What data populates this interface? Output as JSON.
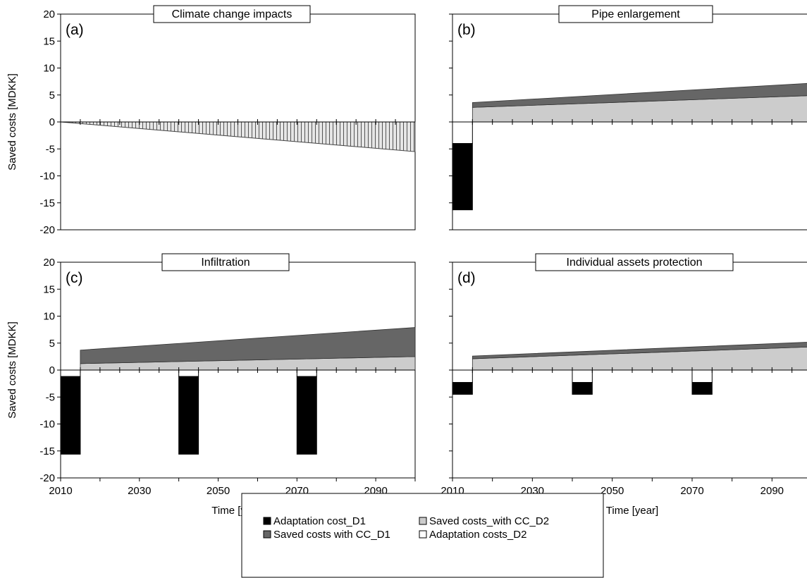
{
  "legend": {
    "entries": [
      {
        "label": "Adaptation cost_D1",
        "color": "#000000"
      },
      {
        "label": "Saved costs with CC_D1",
        "color": "#666666"
      },
      {
        "label": "Saved costs_with CC_D2",
        "color": "#cccccc"
      },
      {
        "label": "Adaptation costs_D2",
        "color": "#ffffff"
      }
    ]
  },
  "chart_data": [
    {
      "type": "bar",
      "title": "Climate change impacts",
      "panel_label": "(a)",
      "ylabel": "Saved costs [MDKK]",
      "xlabel": "",
      "ylim": [
        -20,
        20
      ],
      "yticks": [
        20,
        15,
        10,
        5,
        0,
        -5,
        -10,
        -15,
        -20
      ],
      "xlim": [
        2010,
        2100
      ],
      "xticks": [],
      "hatch": "vertical",
      "series": [
        {
          "name": "Climate change impacts",
          "x": [
            2010,
            2100
          ],
          "y": [
            0,
            -5.5
          ]
        }
      ]
    },
    {
      "type": "area",
      "title": "Pipe enlargement",
      "panel_label": "(b)",
      "ylabel": "",
      "xlabel": "",
      "ylim": [
        -20,
        20
      ],
      "yticks": [],
      "xlim": [
        2010,
        2100
      ],
      "xticks": [],
      "areas": [
        {
          "name": "Saved costs_with CC_D2",
          "color": "#cccccc",
          "x": [
            2015,
            2100
          ],
          "bottom": [
            0,
            0
          ],
          "top": [
            2.7,
            4.9
          ]
        },
        {
          "name": "Saved costs with CC_D1",
          "color": "#666666",
          "x": [
            2015,
            2100
          ],
          "bottom": [
            2.7,
            4.9
          ],
          "top": [
            3.6,
            7.2
          ]
        }
      ],
      "bars": [
        {
          "name": "Adaptation costs_D2",
          "color": "#ffffff",
          "x0": 2010,
          "x1": 2015,
          "bottom": -4,
          "top": 0
        },
        {
          "name": "Adaptation cost_D1",
          "color": "#000000",
          "x0": 2010,
          "x1": 2015,
          "bottom": -16.3,
          "top": -4
        }
      ]
    },
    {
      "type": "area",
      "title": "Infiltration",
      "panel_label": "(c)",
      "ylabel": "Saved costs [MDKK]",
      "xlabel": "Time [year]",
      "ylim": [
        -20,
        20
      ],
      "yticks": [
        20,
        15,
        10,
        5,
        0,
        -5,
        -10,
        -15,
        -20
      ],
      "xlim": [
        2010,
        2100
      ],
      "xticks": [
        2010,
        2030,
        2050,
        2070,
        2090
      ],
      "areas": [
        {
          "name": "Saved costs_with CC_D2",
          "color": "#cccccc",
          "x": [
            2015,
            2100
          ],
          "bottom": [
            0,
            0
          ],
          "top": [
            1.2,
            2.5
          ]
        },
        {
          "name": "Saved costs with CC_D1",
          "color": "#666666",
          "x": [
            2015,
            2100
          ],
          "bottom": [
            1.2,
            2.5
          ],
          "top": [
            3.7,
            7.9
          ]
        }
      ],
      "bars": [
        {
          "name": "Adaptation costs_D2",
          "color": "#ffffff",
          "x0": 2010,
          "x1": 2015,
          "bottom": -1.2,
          "top": 0
        },
        {
          "name": "Adaptation cost_D1",
          "color": "#000000",
          "x0": 2010,
          "x1": 2015,
          "bottom": -15.6,
          "top": -1.2
        },
        {
          "name": "Adaptation costs_D2",
          "color": "#ffffff",
          "x0": 2040,
          "x1": 2045,
          "bottom": -1.2,
          "top": 0
        },
        {
          "name": "Adaptation cost_D1",
          "color": "#000000",
          "x0": 2040,
          "x1": 2045,
          "bottom": -15.6,
          "top": -1.2
        },
        {
          "name": "Adaptation costs_D2",
          "color": "#ffffff",
          "x0": 2070,
          "x1": 2075,
          "bottom": -1.2,
          "top": 0
        },
        {
          "name": "Adaptation cost_D1",
          "color": "#000000",
          "x0": 2070,
          "x1": 2075,
          "bottom": -15.6,
          "top": -1.2
        }
      ]
    },
    {
      "type": "area",
      "title": "Individual assets protection",
      "panel_label": "(d)",
      "ylabel": "",
      "xlabel": "Time [year]",
      "ylim": [
        -20,
        20
      ],
      "yticks": [],
      "xlim": [
        2010,
        2100
      ],
      "xticks": [
        2010,
        2030,
        2050,
        2070,
        2090
      ],
      "areas": [
        {
          "name": "Saved costs_with CC_D2",
          "color": "#cccccc",
          "x": [
            2015,
            2100
          ],
          "bottom": [
            0,
            0
          ],
          "top": [
            2.1,
            4.3
          ]
        },
        {
          "name": "Saved costs with CC_D1",
          "color": "#666666",
          "x": [
            2015,
            2100
          ],
          "bottom": [
            2.1,
            4.3
          ],
          "top": [
            2.6,
            5.2
          ]
        }
      ],
      "bars": [
        {
          "name": "Adaptation costs_D2",
          "color": "#ffffff",
          "x0": 2010,
          "x1": 2015,
          "bottom": -2.3,
          "top": 0
        },
        {
          "name": "Adaptation cost_D1",
          "color": "#000000",
          "x0": 2010,
          "x1": 2015,
          "bottom": -4.5,
          "top": -2.3
        },
        {
          "name": "Adaptation costs_D2",
          "color": "#ffffff",
          "x0": 2040,
          "x1": 2045,
          "bottom": -2.3,
          "top": 0
        },
        {
          "name": "Adaptation cost_D1",
          "color": "#000000",
          "x0": 2040,
          "x1": 2045,
          "bottom": -4.5,
          "top": -2.3
        },
        {
          "name": "Adaptation costs_D2",
          "color": "#ffffff",
          "x0": 2070,
          "x1": 2075,
          "bottom": -2.3,
          "top": 0
        },
        {
          "name": "Adaptation cost_D1",
          "color": "#000000",
          "x0": 2070,
          "x1": 2075,
          "bottom": -4.5,
          "top": -2.3
        }
      ]
    }
  ]
}
